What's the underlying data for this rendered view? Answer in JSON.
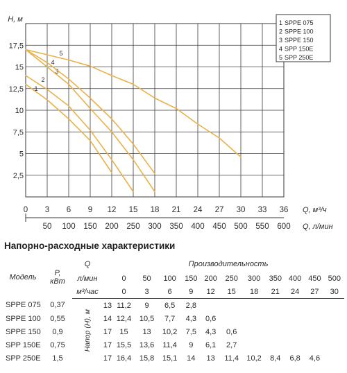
{
  "chart_data": {
    "type": "line",
    "ylabel": "H, м",
    "xlabel": "Q, м³/ч",
    "xlabel2": "Q, л/мин",
    "x_ticks": [
      "0",
      "3",
      "6",
      "9",
      "12",
      "15",
      "18",
      "21",
      "24",
      "27",
      "30",
      "33",
      "36"
    ],
    "x2_ticks": [
      "50",
      "100",
      "150",
      "200",
      "250",
      "300",
      "350",
      "400",
      "450",
      "500",
      "550",
      "600"
    ],
    "y_ticks": [
      "2,5",
      "5",
      "7,5",
      "10",
      "12,5",
      "15",
      "17,5"
    ],
    "xlim": [
      0,
      36
    ],
    "ylim": [
      0,
      20
    ],
    "grid": true,
    "legend_position": "top-right",
    "series": [
      {
        "name": "SPPE 075",
        "label": "1",
        "x": [
          0,
          3,
          6,
          9,
          12
        ],
        "y": [
          13,
          11.2,
          9,
          6.5,
          2.8
        ]
      },
      {
        "name": "SPPE 100",
        "label": "2",
        "x": [
          0,
          3,
          6,
          9,
          12,
          15
        ],
        "y": [
          14,
          12.4,
          10.5,
          7.7,
          4.3,
          0.6
        ]
      },
      {
        "name": "SPPE 150",
        "label": "3",
        "x": [
          0,
          3,
          6,
          9,
          12,
          15,
          18
        ],
        "y": [
          17,
          15,
          13,
          10.2,
          7.5,
          4.3,
          0.6
        ]
      },
      {
        "name": "SPP 150E",
        "label": "4",
        "x": [
          0,
          3,
          6,
          9,
          12,
          15,
          18
        ],
        "y": [
          17,
          15.5,
          13.6,
          11.4,
          9,
          6.1,
          2.7
        ]
      },
      {
        "name": "SPP 250E",
        "label": "5",
        "x": [
          0,
          3,
          6,
          9,
          12,
          15,
          18,
          21,
          24,
          27,
          30
        ],
        "y": [
          17,
          16.4,
          15.8,
          15.1,
          14,
          13,
          11.4,
          10.2,
          8.4,
          6.8,
          4.6
        ]
      }
    ],
    "curve_color": "#e8b24a",
    "label_color": "#e0a030",
    "grid_color": "#3a3a3a"
  },
  "table": {
    "title": "Напорно-расходные характеристики",
    "col_model": "Модель",
    "col_power_p": "P,",
    "col_power_unit": "кВт",
    "col_q": "Q",
    "col_perf": "Производительность",
    "unit_lmin": "л/мин",
    "unit_m3h": "м³/час",
    "head_label": "Напор (Н), м",
    "lmin_values": [
      "0",
      "50",
      "100",
      "150",
      "200",
      "250",
      "300",
      "350",
      "400",
      "450",
      "500"
    ],
    "m3h_values": [
      "0",
      "3",
      "6",
      "9",
      "12",
      "15",
      "18",
      "21",
      "24",
      "27",
      "30"
    ],
    "rows": [
      {
        "model": "SPPE 075",
        "power": "0,37",
        "values": [
          "13",
          "11,2",
          "9",
          "6,5",
          "2,8",
          "",
          "",
          "",
          "",
          "",
          ""
        ]
      },
      {
        "model": "SPPE 100",
        "power": "0,55",
        "values": [
          "14",
          "12,4",
          "10,5",
          "7,7",
          "4,3",
          "0,6",
          "",
          "",
          "",
          "",
          ""
        ]
      },
      {
        "model": "SPPE 150",
        "power": "0,9",
        "values": [
          "17",
          "15",
          "13",
          "10,2",
          "7,5",
          "4,3",
          "0,6",
          "",
          "",
          "",
          ""
        ]
      },
      {
        "model": "SPP 150E",
        "power": "0,75",
        "values": [
          "17",
          "15,5",
          "13,6",
          "11,4",
          "9",
          "6,1",
          "2,7",
          "",
          "",
          "",
          ""
        ]
      },
      {
        "model": "SPP 250E",
        "power": "1,5",
        "values": [
          "17",
          "16,4",
          "15,8",
          "15,1",
          "14",
          "13",
          "11,4",
          "10,2",
          "8,4",
          "6,8",
          "4,6"
        ]
      }
    ]
  }
}
